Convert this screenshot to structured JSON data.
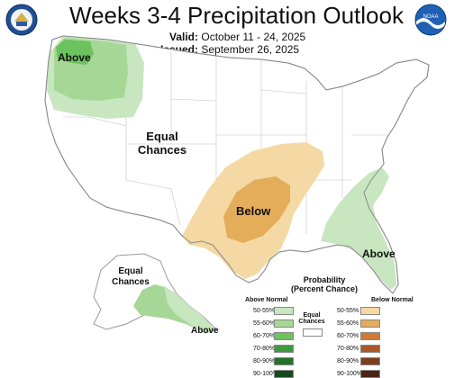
{
  "header": {
    "title": "Weeks 3-4 Precipitation Outlook",
    "valid_label": "Valid:",
    "valid_value": "October 11 - 24, 2025",
    "issued_label": "Issued:",
    "issued_value": "September 26, 2025"
  },
  "map_labels": {
    "above_nw": "Above",
    "equal_west_1": "Equal",
    "equal_west_2": "Chances",
    "below_central": "Below",
    "above_se": "Above",
    "equal_ak_1": "Equal",
    "equal_ak_2": "Chances",
    "above_ak": "Above"
  },
  "legend": {
    "title_1": "Probability",
    "title_2": "(Percent Chance)",
    "above_header": "Above Normal",
    "below_header": "Below Normal",
    "equal_1": "Equal",
    "equal_2": "Chances",
    "above_rows": [
      {
        "label": "50-55%",
        "color": "#c8e6c0"
      },
      {
        "label": "55-60%",
        "color": "#a6d796"
      },
      {
        "label": "60-70%",
        "color": "#6cc25e"
      },
      {
        "label": "70-80%",
        "color": "#3e9a3e"
      },
      {
        "label": "80-90%",
        "color": "#25702a"
      },
      {
        "label": "90-100%",
        "color": "#144a18"
      }
    ],
    "below_rows": [
      {
        "label": "50-55%",
        "color": "#f4d9a4"
      },
      {
        "label": "55-60%",
        "color": "#e4ad5a"
      },
      {
        "label": "60-70%",
        "color": "#cf7a3a"
      },
      {
        "label": "70-80%",
        "color": "#a9582a"
      },
      {
        "label": "80-90%",
        "color": "#7a3d1e"
      },
      {
        "label": "90-100%",
        "color": "#4a2612"
      }
    ]
  },
  "colors": {
    "above_light": "#c8e6c0",
    "above_mid": "#a6d796",
    "above_strong": "#6cc25e",
    "below_light": "#f4d9a4",
    "below_mid": "#e4ad5a",
    "border": "#9a9a9a"
  },
  "icons": [
    "doc-seal-icon",
    "noaa-logo-icon"
  ]
}
